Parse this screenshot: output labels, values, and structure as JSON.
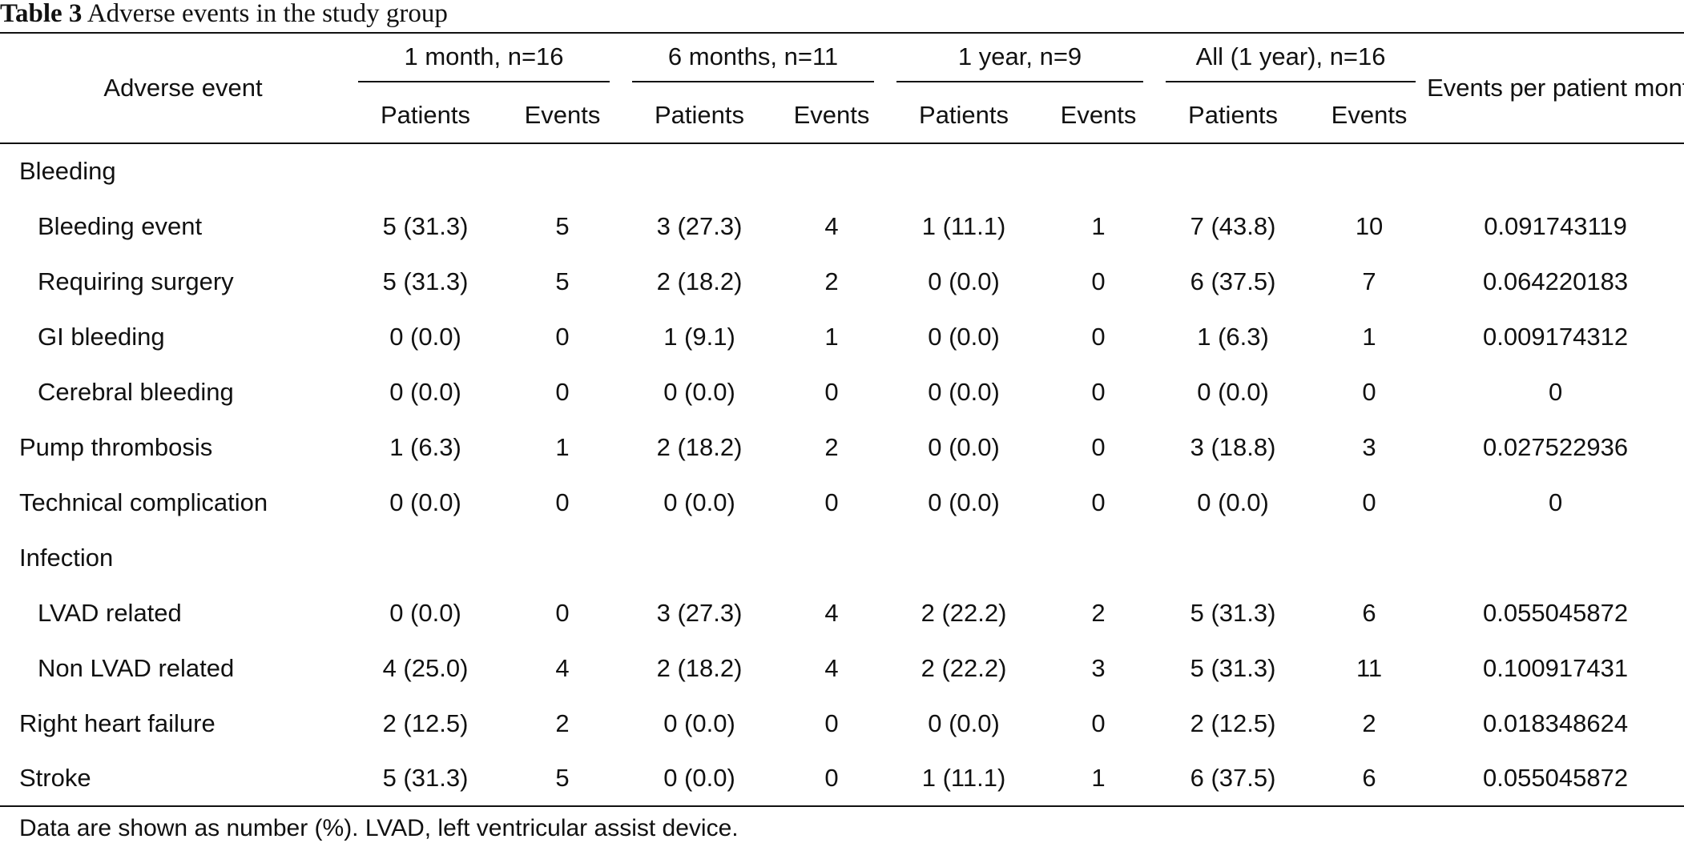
{
  "table": {
    "label": "Table 3",
    "title": "Adverse events in the study group",
    "first_column_header": "Adverse event",
    "groups": [
      {
        "label": "1 month, n=16"
      },
      {
        "label": "6 months, n=11"
      },
      {
        "label": "1 year, n=9"
      },
      {
        "label": "All (1 year), n=16"
      }
    ],
    "sub_headers": [
      "Patients",
      "Events",
      "Patients",
      "Events",
      "Patients",
      "Events",
      "Patients",
      "Events"
    ],
    "rate_header": "Events per patient month",
    "rows": [
      {
        "name": "Bleeding",
        "cells": [
          "",
          "",
          "",
          "",
          "",
          "",
          "",
          "",
          ""
        ]
      },
      {
        "name": "Bleeding event",
        "cells": [
          "5 (31.3)",
          "5",
          "3 (27.3)",
          "4",
          "1 (11.1)",
          "1",
          "7 (43.8)",
          "10",
          "0.091743119"
        ]
      },
      {
        "name": "Requiring surgery",
        "cells": [
          "5 (31.3)",
          "5",
          "2 (18.2)",
          "2",
          "0 (0.0)",
          "0",
          "6 (37.5)",
          "7",
          "0.064220183"
        ]
      },
      {
        "name": "GI bleeding",
        "cells": [
          "0 (0.0)",
          "0",
          "1 (9.1)",
          "1",
          "0 (0.0)",
          "0",
          "1 (6.3)",
          "1",
          "0.009174312"
        ]
      },
      {
        "name": "Cerebral bleeding",
        "cells": [
          "0 (0.0)",
          "0",
          "0 (0.0)",
          "0",
          "0 (0.0)",
          "0",
          "0 (0.0)",
          "0",
          "0"
        ]
      },
      {
        "name": "Pump thrombosis",
        "cells": [
          "1 (6.3)",
          "1",
          "2 (18.2)",
          "2",
          "0 (0.0)",
          "0",
          "3 (18.8)",
          "3",
          "0.027522936"
        ]
      },
      {
        "name": "Technical complication",
        "cells": [
          "0 (0.0)",
          "0",
          "0 (0.0)",
          "0",
          "0 (0.0)",
          "0",
          "0 (0.0)",
          "0",
          "0"
        ]
      },
      {
        "name": "Infection",
        "cells": [
          "",
          "",
          "",
          "",
          "",
          "",
          "",
          "",
          ""
        ]
      },
      {
        "name": "LVAD related",
        "cells": [
          "0 (0.0)",
          "0",
          "3 (27.3)",
          "4",
          "2 (22.2)",
          "2",
          "5 (31.3)",
          "6",
          "0.055045872"
        ]
      },
      {
        "name": "Non LVAD related",
        "cells": [
          "4 (25.0)",
          "4",
          "2 (18.2)",
          "4",
          "2 (22.2)",
          "3",
          "5 (31.3)",
          "11",
          "0.100917431"
        ]
      },
      {
        "name": "Right heart failure",
        "cells": [
          "2 (12.5)",
          "2",
          "0 (0.0)",
          "0",
          "0 (0.0)",
          "0",
          "2 (12.5)",
          "2",
          "0.018348624"
        ]
      },
      {
        "name": "Stroke",
        "cells": [
          "5 (31.3)",
          "5",
          "0 (0.0)",
          "0",
          "1 (11.1)",
          "1",
          "6 (37.5)",
          "6",
          "0.055045872"
        ]
      }
    ],
    "footnote": "Data are shown as number (%). LVAD, left ventricular assist device."
  }
}
